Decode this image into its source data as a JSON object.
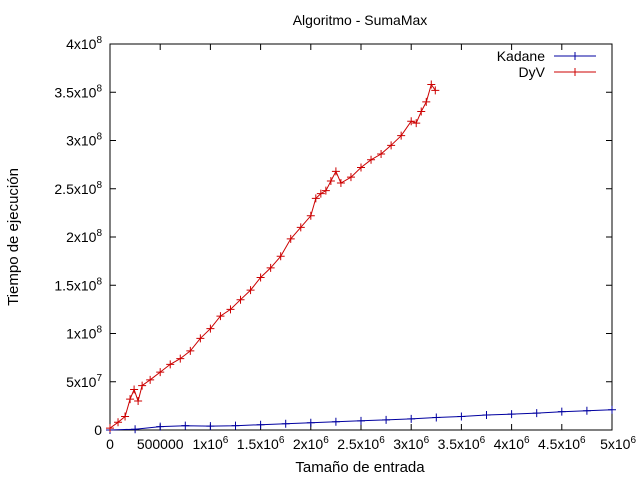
{
  "chart_data": {
    "type": "line",
    "title": "Algoritmo - SumaMax",
    "xlabel": "Tamaño de entrada",
    "ylabel": "Tiempo de ejecución",
    "xlim": [
      0,
      5000000
    ],
    "ylim": [
      0,
      400000000
    ],
    "grid": false,
    "legend_position": "top-right",
    "x_ticks": [
      {
        "value": 0,
        "base": "0",
        "exp": ""
      },
      {
        "value": 500000,
        "base": "500000",
        "exp": ""
      },
      {
        "value": 1000000,
        "base": "1x10",
        "exp": "6"
      },
      {
        "value": 1500000,
        "base": "1.5x10",
        "exp": "6"
      },
      {
        "value": 2000000,
        "base": "2x10",
        "exp": "6"
      },
      {
        "value": 2500000,
        "base": "2.5x10",
        "exp": "6"
      },
      {
        "value": 3000000,
        "base": "3x10",
        "exp": "6"
      },
      {
        "value": 3500000,
        "base": "3.5x10",
        "exp": "6"
      },
      {
        "value": 4000000,
        "base": "4x10",
        "exp": "6"
      },
      {
        "value": 4500000,
        "base": "4.5x10",
        "exp": "6"
      },
      {
        "value": 5000000,
        "base": "5x10",
        "exp": "6"
      }
    ],
    "y_ticks": [
      {
        "value": 0,
        "base": "0",
        "exp": ""
      },
      {
        "value": 50000000,
        "base": "5x10",
        "exp": "7"
      },
      {
        "value": 100000000,
        "base": "1x10",
        "exp": "8"
      },
      {
        "value": 150000000,
        "base": "1.5x10",
        "exp": "8"
      },
      {
        "value": 200000000,
        "base": "2x10",
        "exp": "8"
      },
      {
        "value": 250000000,
        "base": "2.5x10",
        "exp": "8"
      },
      {
        "value": 300000000,
        "base": "3x10",
        "exp": "8"
      },
      {
        "value": 350000000,
        "base": "3.5x10",
        "exp": "8"
      },
      {
        "value": 400000000,
        "base": "4x10",
        "exp": "8"
      }
    ],
    "series": [
      {
        "name": "Kadane",
        "color": "#0000a0",
        "x": [
          0,
          250000,
          500000,
          750000,
          1000000,
          1250000,
          1500000,
          1750000,
          2000000,
          2250000,
          2500000,
          2750000,
          3000000,
          3250000,
          3500000,
          3750000,
          4000000,
          4250000,
          4500000,
          4750000,
          5000000
        ],
        "values": [
          0,
          800000,
          3500000,
          4500000,
          4000000,
          4500000,
          5500000,
          6500000,
          7500000,
          8500000,
          9500000,
          10500000,
          11500000,
          13000000,
          14000000,
          15500000,
          16500000,
          17500000,
          19000000,
          20000000,
          21000000
        ]
      },
      {
        "name": "DyV",
        "color": "#cc0000",
        "x": [
          0,
          80000,
          150000,
          200000,
          240000,
          280000,
          320000,
          400000,
          500000,
          600000,
          700000,
          800000,
          900000,
          1000000,
          1100000,
          1200000,
          1300000,
          1400000,
          1500000,
          1600000,
          1700000,
          1800000,
          1900000,
          2000000,
          2050000,
          2100000,
          2150000,
          2200000,
          2250000,
          2300000,
          2400000,
          2500000,
          2600000,
          2700000,
          2800000,
          2900000,
          3000000,
          3050000,
          3100000,
          3150000,
          3200000,
          3240000
        ],
        "values": [
          2000000,
          8000000,
          14000000,
          32000000,
          42000000,
          30000000,
          46000000,
          52000000,
          60000000,
          68000000,
          74000000,
          82000000,
          95000000,
          105000000,
          118000000,
          125000000,
          135000000,
          145000000,
          158000000,
          168000000,
          180000000,
          198000000,
          210000000,
          222000000,
          240000000,
          245000000,
          248000000,
          258000000,
          268000000,
          256000000,
          262000000,
          272000000,
          280000000,
          286000000,
          295000000,
          305000000,
          320000000,
          318000000,
          330000000,
          340000000,
          358000000,
          352000000
        ]
      }
    ]
  }
}
